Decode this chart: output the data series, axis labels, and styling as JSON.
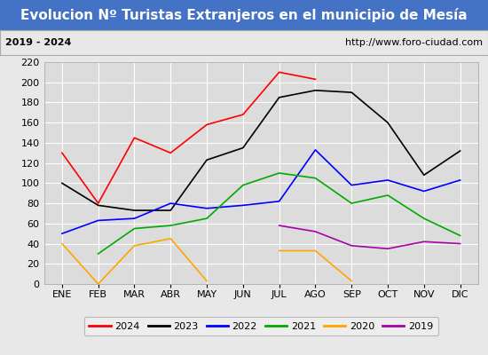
{
  "title": "Evolucion Nº Turistas Extranjeros en el municipio de Mesía",
  "subtitle_left": "2019 - 2024",
  "subtitle_right": "http://www.foro-ciudad.com",
  "months": [
    "ENE",
    "FEB",
    "MAR",
    "ABR",
    "MAY",
    "JUN",
    "JUL",
    "AGO",
    "SEP",
    "OCT",
    "NOV",
    "DIC"
  ],
  "series": {
    "2024": {
      "color": "#ff0000",
      "data": [
        130,
        80,
        145,
        130,
        158,
        168,
        210,
        203,
        null,
        null,
        null,
        null
      ]
    },
    "2023": {
      "color": "#000000",
      "data": [
        100,
        78,
        73,
        73,
        123,
        135,
        185,
        192,
        190,
        160,
        108,
        132
      ]
    },
    "2022": {
      "color": "#0000ff",
      "data": [
        50,
        63,
        65,
        80,
        75,
        78,
        82,
        133,
        98,
        103,
        92,
        103
      ]
    },
    "2021": {
      "color": "#00aa00",
      "data": [
        null,
        30,
        55,
        58,
        65,
        98,
        110,
        105,
        80,
        88,
        65,
        48
      ]
    },
    "2020": {
      "color": "#ffa500",
      "data": [
        40,
        0,
        38,
        45,
        3,
        null,
        33,
        33,
        3,
        null,
        null,
        null
      ]
    },
    "2019": {
      "color": "#aa00aa",
      "data": [
        null,
        null,
        null,
        null,
        null,
        null,
        58,
        52,
        38,
        35,
        42,
        40
      ]
    }
  },
  "ylim": [
    0,
    220
  ],
  "yticks": [
    0,
    20,
    40,
    60,
    80,
    100,
    120,
    140,
    160,
    180,
    200,
    220
  ],
  "title_bg_color": "#4472c4",
  "title_text_color": "#ffffff",
  "subtitle_bg_color": "#e8e8e8",
  "plot_bg_color": "#e8e8e8",
  "chart_bg_color": "#dcdcdc",
  "grid_color": "#ffffff",
  "title_fontsize": 11,
  "subtitle_fontsize": 8,
  "tick_fontsize": 8,
  "legend_fontsize": 8,
  "legend_order": [
    "2024",
    "2023",
    "2022",
    "2021",
    "2020",
    "2019"
  ]
}
